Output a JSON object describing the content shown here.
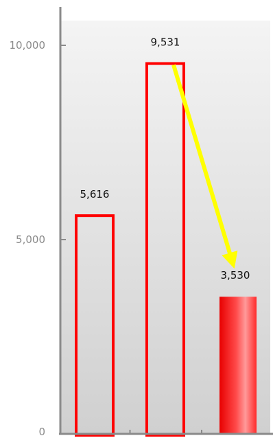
{
  "chart_data": {
    "type": "bar",
    "categories": [
      "",
      "",
      ""
    ],
    "values": [
      5616,
      9531,
      3530
    ],
    "value_labels": [
      "5,616",
      "9,531",
      "3,530"
    ],
    "title": "",
    "xlabel": "",
    "ylabel": "",
    "ylim": [
      0,
      10000
    ],
    "yticks": [
      {
        "value": 0,
        "label": "0"
      },
      {
        "value": 5000,
        "label": "5,000"
      },
      {
        "value": 10000,
        "label": "10,000"
      }
    ],
    "bar_styles": [
      "outline",
      "outline",
      "filled"
    ],
    "annotations": [
      {
        "type": "arrow",
        "from_bar": 2,
        "to_bar": 3,
        "color": "#ffff00"
      }
    ],
    "grid": false,
    "legend": "none"
  },
  "colors": {
    "bar_stroke": "#ff0000",
    "bar_fill": "#ff3b3b",
    "axis": "#8a8a8a",
    "arrow": "#ffff00",
    "background_top": "#f4f4f4",
    "background_bottom": "#d0d0d0"
  }
}
